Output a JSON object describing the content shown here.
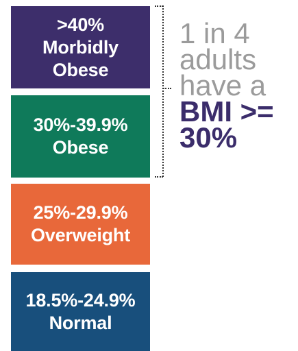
{
  "categories": [
    {
      "range": ">40%",
      "label_line1": "Morbidly",
      "label_line2": "Obese",
      "color": "#3d2e6b"
    },
    {
      "range": "30%-39.9%",
      "label_line1": "Obese",
      "color": "#0f7a5a"
    },
    {
      "range": "25%-29.9%",
      "label_line1": "Overweight",
      "color": "#e8683a"
    },
    {
      "range": "18.5%-24.9%",
      "label_line1": "Normal",
      "color": "#184f7c"
    }
  ],
  "callout": {
    "line1": "1 in 4",
    "line2": "adults",
    "line3": "have a",
    "line4": "BMI >=",
    "line5": "30%",
    "text_color": "#9b9b9b",
    "accent_color": "#3b2d6b"
  }
}
